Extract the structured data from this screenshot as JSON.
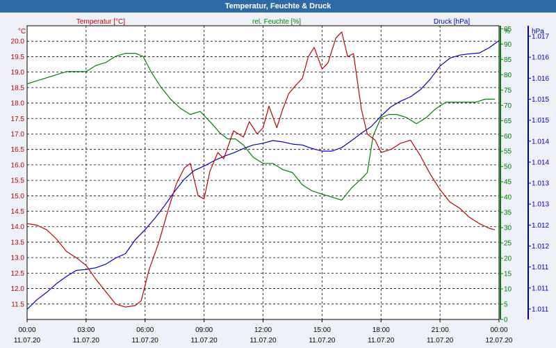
{
  "title": "Temperatur, Feuchte & Druck",
  "chart_data": {
    "type": "line",
    "title": "Temperatur, Feuchte & Druck",
    "colors": {
      "temperature": "#c00000",
      "humidity": "#008000",
      "pressure": "#0000c0"
    },
    "series_labels": {
      "temperature": "Temperatur [°C]",
      "humidity": "rel. Feuchte [%]",
      "pressure": "Druck [hPa]"
    },
    "axis_units": {
      "left": "°C",
      "right1": "%",
      "right2": "hPa"
    },
    "x_ticks": [
      {
        "h": 0,
        "time": "00:00",
        "date": "11.07.20"
      },
      {
        "h": 3,
        "time": "03:00",
        "date": "11.07.20"
      },
      {
        "h": 6,
        "time": "06:00",
        "date": "11.07.20"
      },
      {
        "h": 9,
        "time": "09:00",
        "date": "11.07.20"
      },
      {
        "h": 12,
        "time": "12:00",
        "date": "11.07.20"
      },
      {
        "h": 15,
        "time": "15:00",
        "date": "11.07.20"
      },
      {
        "h": 18,
        "time": "18:00",
        "date": "11.07.20"
      },
      {
        "h": 21,
        "time": "21:00",
        "date": "11.07.20"
      },
      {
        "h": 24,
        "time": "00:00",
        "date": "12.07.20"
      }
    ],
    "xlim": [
      0,
      24
    ],
    "temp_axis": {
      "min": 11.0,
      "max": 20.5,
      "step": 0.5
    },
    "hum_axis": {
      "min": 0,
      "max": 96,
      "step": 5
    },
    "press_axis": {
      "min": 1010.6,
      "max": 1017.3,
      "labels": [
        "1.011",
        "1.011",
        "1.011",
        "1.012",
        "1.012",
        "1.013",
        "1.013",
        "1.014",
        "1.014",
        "1.015",
        "1.015",
        "1.016",
        "1.016",
        "1.017"
      ]
    },
    "temperature": [
      [
        0,
        14.1
      ],
      [
        0.5,
        14.05
      ],
      [
        1,
        13.9
      ],
      [
        1.5,
        13.6
      ],
      [
        2,
        13.2
      ],
      [
        2.5,
        13.0
      ],
      [
        3,
        12.75
      ],
      [
        3.5,
        12.3
      ],
      [
        4,
        11.9
      ],
      [
        4.5,
        11.5
      ],
      [
        5,
        11.4
      ],
      [
        5.5,
        11.45
      ],
      [
        5.8,
        11.6
      ],
      [
        6.2,
        12.6
      ],
      [
        6.7,
        13.5
      ],
      [
        7.2,
        14.6
      ],
      [
        7.6,
        15.4
      ],
      [
        8,
        15.9
      ],
      [
        8.3,
        16.05
      ],
      [
        8.7,
        15.0
      ],
      [
        9,
        14.9
      ],
      [
        9.3,
        15.8
      ],
      [
        9.7,
        16.4
      ],
      [
        10,
        16.2
      ],
      [
        10.5,
        17.1
      ],
      [
        11,
        16.9
      ],
      [
        11.3,
        17.4
      ],
      [
        11.7,
        17.0
      ],
      [
        12,
        17.2
      ],
      [
        12.3,
        17.9
      ],
      [
        12.7,
        17.2
      ],
      [
        13,
        17.8
      ],
      [
        13.3,
        18.3
      ],
      [
        13.7,
        18.6
      ],
      [
        14,
        18.8
      ],
      [
        14.3,
        19.5
      ],
      [
        14.6,
        19.8
      ],
      [
        15,
        19.1
      ],
      [
        15.3,
        19.3
      ],
      [
        15.7,
        20.1
      ],
      [
        16,
        20.3
      ],
      [
        16.3,
        19.5
      ],
      [
        16.6,
        19.6
      ],
      [
        17,
        17.8
      ],
      [
        17.3,
        17.0
      ],
      [
        17.7,
        16.8
      ],
      [
        18,
        16.4
      ],
      [
        18.5,
        16.5
      ],
      [
        19,
        16.7
      ],
      [
        19.5,
        16.8
      ],
      [
        20,
        16.3
      ],
      [
        20.5,
        15.7
      ],
      [
        21,
        15.2
      ],
      [
        21.5,
        14.8
      ],
      [
        22,
        14.6
      ],
      [
        22.5,
        14.3
      ],
      [
        23,
        14.1
      ],
      [
        23.5,
        13.95
      ],
      [
        23.8,
        13.9
      ]
    ],
    "humidity": [
      [
        0,
        77
      ],
      [
        0.5,
        78
      ],
      [
        1,
        79
      ],
      [
        1.5,
        80
      ],
      [
        2,
        81
      ],
      [
        2.5,
        81
      ],
      [
        3,
        81
      ],
      [
        3.5,
        83
      ],
      [
        4,
        84
      ],
      [
        4.5,
        86
      ],
      [
        5,
        87
      ],
      [
        5.5,
        87
      ],
      [
        5.9,
        86
      ],
      [
        6.3,
        81
      ],
      [
        6.8,
        76
      ],
      [
        7.3,
        72
      ],
      [
        7.8,
        69
      ],
      [
        8.3,
        67
      ],
      [
        8.8,
        68
      ],
      [
        9.1,
        66
      ],
      [
        9.4,
        64
      ],
      [
        9.8,
        61
      ],
      [
        10.2,
        59
      ],
      [
        10.6,
        59
      ],
      [
        11,
        57
      ],
      [
        11.5,
        53
      ],
      [
        12,
        51
      ],
      [
        12.5,
        51
      ],
      [
        13,
        49
      ],
      [
        13.5,
        48
      ],
      [
        14,
        44
      ],
      [
        14.5,
        42
      ],
      [
        15,
        41
      ],
      [
        15.5,
        40
      ],
      [
        16,
        39
      ],
      [
        16.5,
        43
      ],
      [
        17,
        46
      ],
      [
        17.3,
        48
      ],
      [
        17.6,
        60
      ],
      [
        18,
        66
      ],
      [
        18.4,
        67
      ],
      [
        18.8,
        67
      ],
      [
        19.3,
        66
      ],
      [
        19.8,
        64
      ],
      [
        20.3,
        66
      ],
      [
        20.8,
        69
      ],
      [
        21.3,
        71
      ],
      [
        21.8,
        71
      ],
      [
        22.3,
        71
      ],
      [
        22.8,
        71
      ],
      [
        23.3,
        72
      ],
      [
        23.8,
        72
      ]
    ],
    "pressure": [
      [
        0,
        1010.83
      ],
      [
        0.5,
        1011.05
      ],
      [
        1,
        1011.22
      ],
      [
        1.5,
        1011.42
      ],
      [
        2,
        1011.58
      ],
      [
        2.5,
        1011.72
      ],
      [
        3,
        1011.74
      ],
      [
        3.5,
        1011.78
      ],
      [
        4,
        1011.86
      ],
      [
        4.5,
        1012.0
      ],
      [
        5,
        1012.1
      ],
      [
        5.5,
        1012.42
      ],
      [
        6,
        1012.65
      ],
      [
        6.5,
        1012.91
      ],
      [
        7,
        1013.2
      ],
      [
        7.5,
        1013.52
      ],
      [
        8,
        1013.8
      ],
      [
        8.5,
        1014.0
      ],
      [
        9,
        1014.1
      ],
      [
        9.5,
        1014.22
      ],
      [
        10,
        1014.32
      ],
      [
        10.5,
        1014.4
      ],
      [
        11,
        1014.5
      ],
      [
        11.5,
        1014.58
      ],
      [
        12,
        1014.62
      ],
      [
        12.5,
        1014.68
      ],
      [
        13,
        1014.65
      ],
      [
        13.5,
        1014.6
      ],
      [
        14,
        1014.58
      ],
      [
        14.5,
        1014.5
      ],
      [
        15,
        1014.44
      ],
      [
        15.5,
        1014.44
      ],
      [
        16,
        1014.52
      ],
      [
        16.5,
        1014.68
      ],
      [
        17,
        1014.85
      ],
      [
        17.5,
        1015.0
      ],
      [
        18,
        1015.24
      ],
      [
        18.5,
        1015.45
      ],
      [
        19,
        1015.58
      ],
      [
        19.5,
        1015.68
      ],
      [
        20,
        1015.84
      ],
      [
        20.5,
        1016.08
      ],
      [
        21,
        1016.38
      ],
      [
        21.5,
        1016.56
      ],
      [
        22,
        1016.63
      ],
      [
        22.5,
        1016.66
      ],
      [
        23,
        1016.68
      ],
      [
        23.5,
        1016.8
      ],
      [
        24,
        1016.96
      ]
    ]
  }
}
